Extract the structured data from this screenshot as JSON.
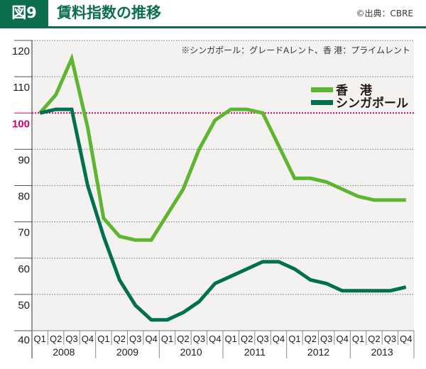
{
  "header": {
    "badge": "図9",
    "title": "賃料指数の推移",
    "source": "©出典：CBRE"
  },
  "colors": {
    "brand": "#0d6e4e",
    "hong_kong": "#5db530",
    "singapore": "#00704f",
    "baseline": "#d4006e",
    "plot_bg": "#f4f2f0",
    "grid": "#8c8c8c"
  },
  "chart_data": {
    "type": "line",
    "title": "賃料指数の推移",
    "note": "※シンガポール：グレードAレント、香 港：プライムレント",
    "xlabel": "",
    "ylabel": "",
    "ylim": [
      40,
      120
    ],
    "yticks": [
      40,
      50,
      60,
      70,
      80,
      90,
      100,
      110,
      120
    ],
    "grid": true,
    "baseline": 100,
    "legend_position": "upper right",
    "years": [
      "2008",
      "2009",
      "2010",
      "2011",
      "2012",
      "2013"
    ],
    "quarters": [
      "Q1",
      "Q2",
      "Q3",
      "Q4"
    ],
    "categories": [
      "2008 Q1",
      "2008 Q2",
      "2008 Q3",
      "2008 Q4",
      "2009 Q1",
      "2009 Q2",
      "2009 Q3",
      "2009 Q4",
      "2010 Q1",
      "2010 Q2",
      "2010 Q3",
      "2010 Q4",
      "2011 Q1",
      "2011 Q2",
      "2011 Q3",
      "2011 Q4",
      "2012 Q1",
      "2012 Q2",
      "2012 Q3",
      "2012 Q4",
      "2013 Q1",
      "2013 Q2",
      "2013 Q3",
      "2013 Q4"
    ],
    "series": [
      {
        "name": "香　港",
        "color": "#5db530",
        "values": [
          100,
          105,
          115,
          96,
          71,
          66,
          65,
          65,
          72,
          79,
          90,
          98,
          101,
          101,
          100,
          91,
          82,
          82,
          81,
          79,
          77,
          76,
          76,
          76
        ]
      },
      {
        "name": "シンガポール",
        "color": "#00704f",
        "values": [
          100,
          101,
          101,
          80,
          66,
          54,
          47,
          43,
          43,
          45,
          48,
          53,
          55,
          57,
          59,
          59,
          57,
          54,
          53,
          51,
          51,
          51,
          51,
          52
        ]
      }
    ]
  }
}
